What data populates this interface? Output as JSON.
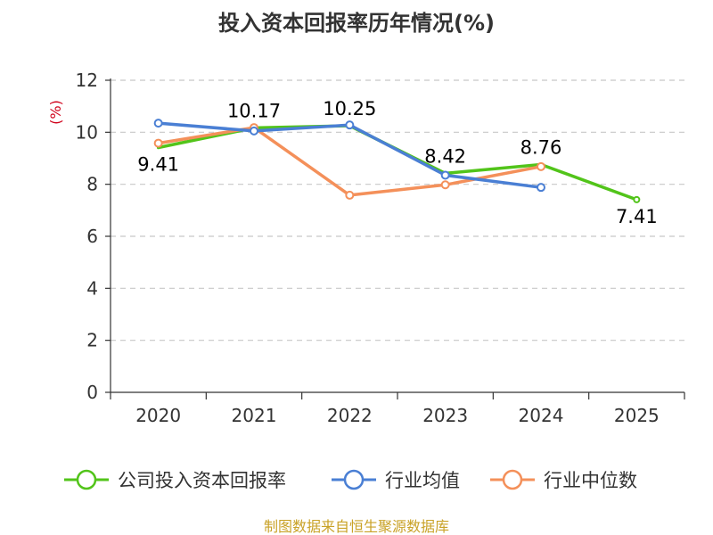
{
  "chart_data": {
    "type": "line",
    "title": "投入资本回报率历年情况(%)",
    "xlabel": "",
    "ylabel": "(%)",
    "ylim": [
      0,
      12
    ],
    "yticks": [
      0,
      2,
      4,
      6,
      8,
      10,
      12
    ],
    "categories": [
      "2020",
      "2021",
      "2022",
      "2023",
      "2024",
      "2025"
    ],
    "grid": true,
    "legend_position": "bottom",
    "series": [
      {
        "name": "公司投入资本回报率",
        "color": "#52c41a",
        "values": [
          9.41,
          10.17,
          10.25,
          8.42,
          8.76,
          7.41
        ],
        "labels": [
          "9.41",
          "10.17",
          "10.25",
          "8.42",
          "8.76",
          "7.41"
        ]
      },
      {
        "name": "行业均值",
        "color": "#4a7fd4",
        "values": [
          10.35,
          10.05,
          10.28,
          8.35,
          7.88,
          null
        ]
      },
      {
        "name": "行业中位数",
        "color": "#f4905a",
        "values": [
          9.58,
          10.18,
          7.58,
          7.98,
          8.68,
          null
        ]
      }
    ]
  },
  "footer": {
    "source": "制图数据来自恒生聚源数据库"
  }
}
